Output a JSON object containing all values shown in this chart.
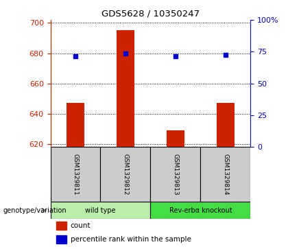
{
  "title": "GDS5628 / 10350247",
  "samples": [
    "GSM1329811",
    "GSM1329812",
    "GSM1329813",
    "GSM1329814"
  ],
  "counts": [
    647,
    695,
    629,
    647
  ],
  "percentile_ranks": [
    678,
    680,
    678,
    679
  ],
  "ylim_left": [
    618,
    702
  ],
  "ylim_right": [
    0,
    100
  ],
  "yticks_left": [
    620,
    640,
    660,
    680,
    700
  ],
  "yticks_right": [
    0,
    25,
    50,
    75,
    100
  ],
  "bar_color": "#cc2200",
  "dot_color": "#0000cc",
  "bar_width": 0.35,
  "groups": [
    {
      "label": "wild type",
      "samples": [
        0,
        1
      ],
      "color": "#bbeeaa"
    },
    {
      "label": "Rev-erbα knockout",
      "samples": [
        2,
        3
      ],
      "color": "#44dd44"
    }
  ],
  "xlabel_group": "genotype/variation",
  "legend_count_label": "count",
  "legend_pct_label": "percentile rank within the sample",
  "title_color": "#000000",
  "left_axis_color": "#cc2200",
  "right_axis_color": "#0000cc",
  "background_plot": "#ffffff",
  "sample_box_color": "#cccccc",
  "grid_color": "#000000"
}
